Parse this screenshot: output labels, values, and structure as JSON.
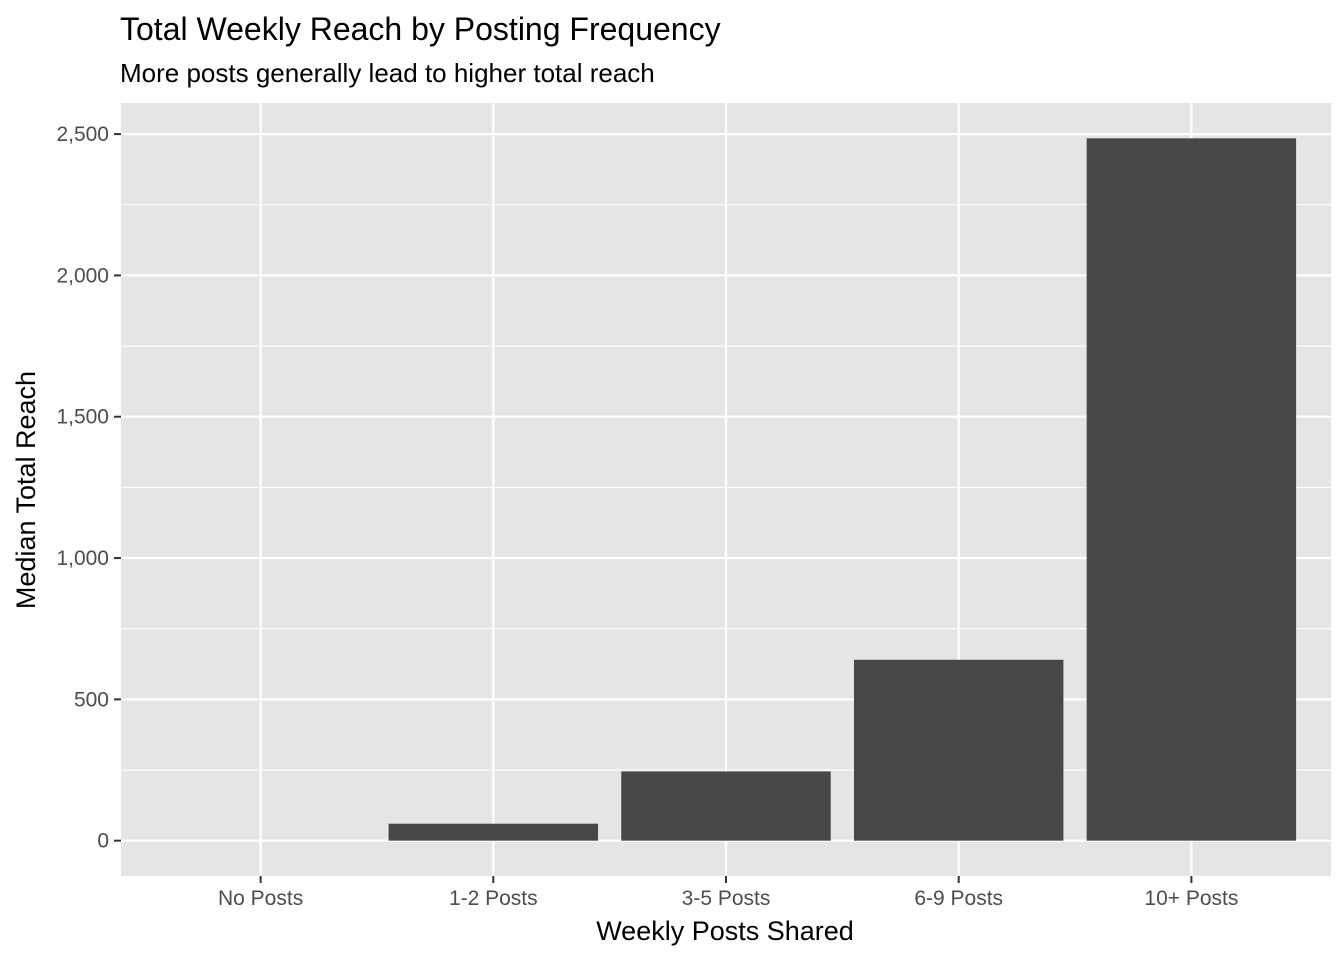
{
  "chart_data": {
    "type": "bar",
    "title": "Total Weekly Reach by Posting Frequency",
    "subtitle": "More posts generally lead to higher total reach",
    "xlabel": "Weekly Posts Shared",
    "ylabel": "Median Total Reach",
    "categories": [
      "No Posts",
      "1-2 Posts",
      "3-5 Posts",
      "6-9 Posts",
      "10+ Posts"
    ],
    "values": [
      0,
      60,
      245,
      640,
      2485
    ],
    "ylim": [
      -125,
      2610
    ],
    "y_ticks": [
      0,
      500,
      1000,
      1500,
      2000,
      2500
    ],
    "y_tick_labels": [
      "0",
      "500",
      "1,000",
      "1,500",
      "2,000",
      "2,500"
    ],
    "grid": true,
    "legend": "none",
    "colors": {
      "bar": "#474747",
      "panel": "#e5e5e5",
      "grid": "#ffffff",
      "tick": "#333333"
    }
  }
}
